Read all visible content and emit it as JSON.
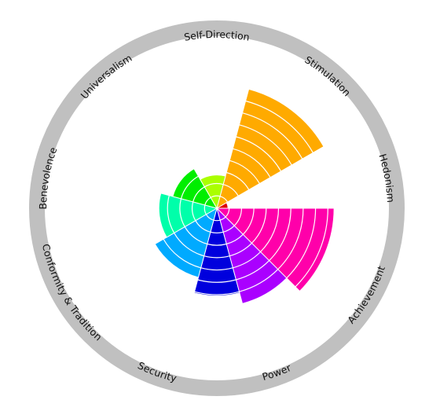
{
  "chart_data": {
    "type": "polar-area",
    "title": "",
    "axis_labels": [
      "Self-Direction",
      "Stimulation",
      "Hedonism",
      "Achievement",
      "Power",
      "Security",
      "Conformity & Tradition",
      "Benevolence",
      "Universalism"
    ],
    "rmax": 10,
    "ring_step": 1,
    "grid_color": "#ffffff",
    "ring_color": "#c0c0c0",
    "sectors": [
      {
        "start_deg": 15,
        "end_deg": 60,
        "value": 10.0,
        "color": "#ffaa00"
      },
      {
        "start_deg": 60,
        "end_deg": 90,
        "value": 0.9,
        "color": "#dd0000"
      },
      {
        "start_deg": 90,
        "end_deg": 135,
        "value": 9.5,
        "color": "#ff00aa"
      },
      {
        "start_deg": 135,
        "end_deg": 165,
        "value": 8.0,
        "color": "#aa00ff"
      },
      {
        "start_deg": 165,
        "end_deg": 195,
        "value": 7.1,
        "color": "#0000dd"
      },
      {
        "start_deg": 195,
        "end_deg": 240,
        "value": 5.8,
        "color": "#00aaff"
      },
      {
        "start_deg": 240,
        "end_deg": 285,
        "value": 4.7,
        "color": "#00ffaa"
      },
      {
        "start_deg": 285,
        "end_deg": 330,
        "value": 3.7,
        "color": "#00ee00"
      },
      {
        "start_deg": 330,
        "end_deg": 375,
        "value": 2.7,
        "color": "#aaff00"
      }
    ]
  }
}
